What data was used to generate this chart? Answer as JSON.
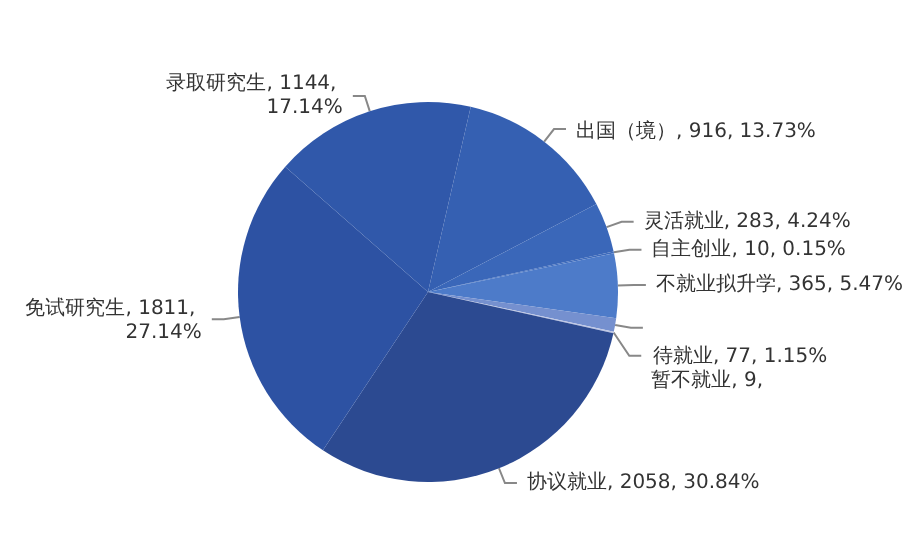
{
  "chart_data": {
    "type": "pie",
    "categories": [
      "出国（境）",
      "灵活就业",
      "自主创业",
      "不就业拟升学",
      "待就业",
      "暂不就业",
      "协议就业",
      "免试研究生",
      "录取研究生"
    ],
    "values": [
      916,
      283,
      10,
      365,
      77,
      9,
      2058,
      1811,
      1144
    ],
    "value_labels": [
      "916, 13.73%",
      "283, 4.24%",
      "10, 0.15%",
      "365, 5.47%",
      "77, 1.15%",
      "9,",
      "2058, 30.84%",
      "1811, 27.14%",
      "1144, 17.14%"
    ],
    "colors": [
      "#3560b2",
      "#3a67b9",
      "#3e6bbc",
      "#4d7bc9",
      "#7590cf",
      "#bcc5e4",
      "#2c4a91",
      "#2d52a3",
      "#3058aa"
    ],
    "legend": false
  }
}
